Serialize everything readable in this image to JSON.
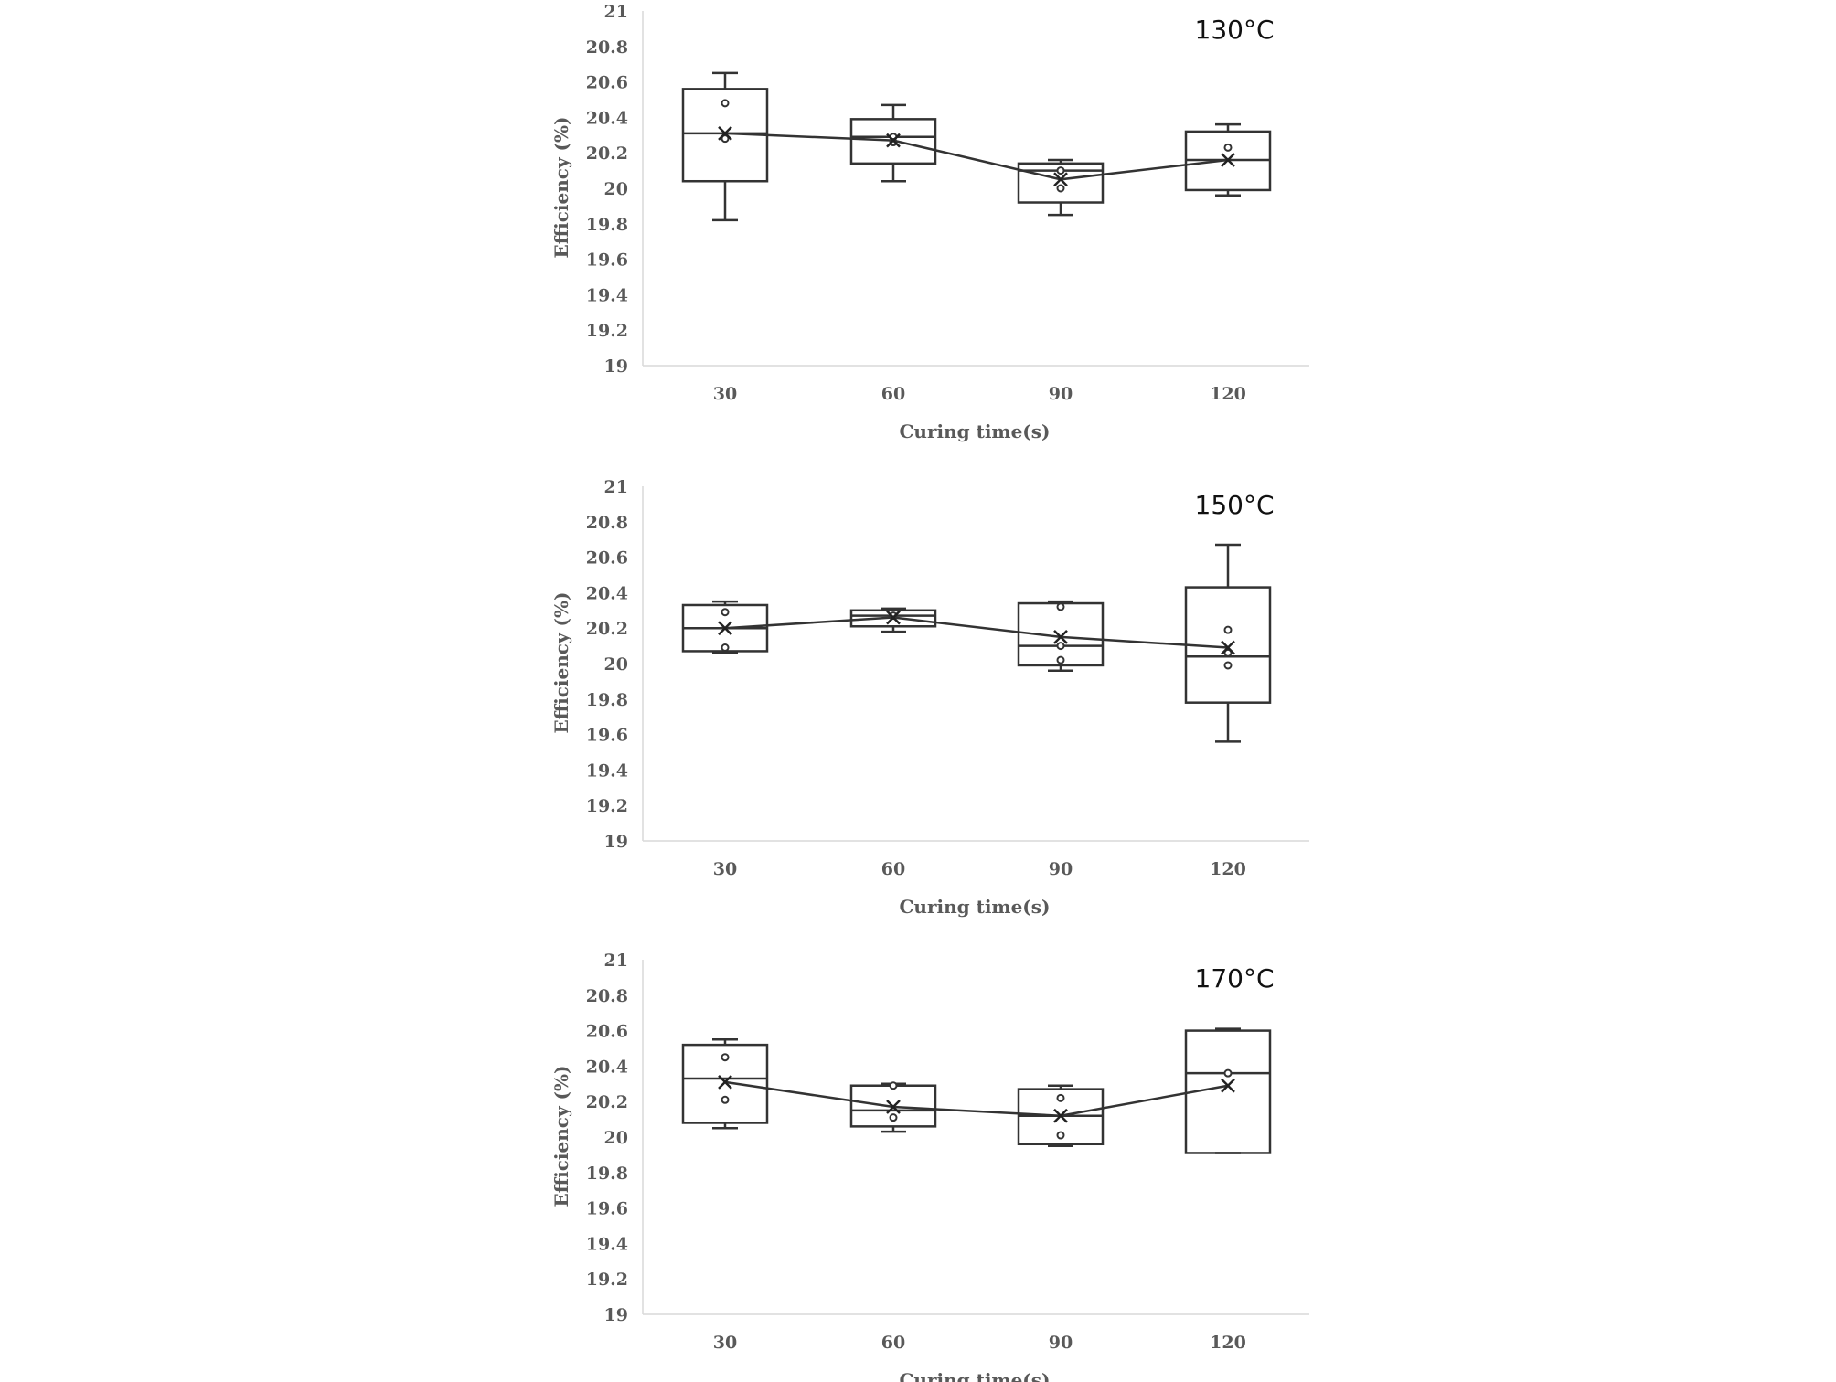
{
  "chart_data": [
    {
      "type": "box",
      "title": "130°C",
      "xlabel": "Curing time(s)",
      "ylabel": "Efficiency (%)",
      "ylim": [
        19,
        21
      ],
      "yticks": [
        "19",
        "19.2",
        "19.4",
        "19.6",
        "19.8",
        "20",
        "20.2",
        "20.4",
        "20.6",
        "20.8",
        "21"
      ],
      "categories": [
        "30",
        "60",
        "90",
        "120"
      ],
      "boxes": [
        {
          "min": 19.82,
          "q1": 20.04,
          "median": 20.31,
          "q3": 20.56,
          "max": 20.65,
          "mean": 20.31,
          "points": [
            20.48,
            20.28
          ]
        },
        {
          "min": 20.04,
          "q1": 20.14,
          "median": 20.29,
          "q3": 20.39,
          "max": 20.47,
          "mean": 20.27,
          "points": [
            20.29,
            20.26
          ]
        },
        {
          "min": 19.85,
          "q1": 19.92,
          "median": 20.1,
          "q3": 20.14,
          "max": 20.16,
          "mean": 20.05,
          "points": [
            20.1,
            20.0
          ]
        },
        {
          "min": 19.96,
          "q1": 19.99,
          "median": 20.16,
          "q3": 20.32,
          "max": 20.36,
          "mean": 20.16,
          "points": [
            20.23
          ]
        }
      ],
      "grid": false
    },
    {
      "type": "box",
      "title": "150°C",
      "xlabel": "Curing time(s)",
      "ylabel": "Efficiency (%)",
      "ylim": [
        19,
        21
      ],
      "yticks": [
        "19",
        "19.2",
        "19.4",
        "19.6",
        "19.8",
        "20",
        "20.2",
        "20.4",
        "20.6",
        "20.8",
        "21"
      ],
      "categories": [
        "30",
        "60",
        "90",
        "120"
      ],
      "boxes": [
        {
          "min": 20.06,
          "q1": 20.07,
          "median": 20.2,
          "q3": 20.33,
          "max": 20.35,
          "mean": 20.2,
          "points": [
            20.29,
            20.09
          ]
        },
        {
          "min": 20.18,
          "q1": 20.21,
          "median": 20.27,
          "q3": 20.3,
          "max": 20.31,
          "mean": 20.26,
          "points": [
            20.27
          ]
        },
        {
          "min": 19.96,
          "q1": 19.99,
          "median": 20.1,
          "q3": 20.34,
          "max": 20.35,
          "mean": 20.15,
          "points": [
            20.32,
            20.1,
            20.02
          ]
        },
        {
          "min": 19.56,
          "q1": 19.78,
          "median": 20.04,
          "q3": 20.43,
          "max": 20.67,
          "mean": 20.09,
          "points": [
            20.19,
            20.06,
            19.99
          ]
        }
      ],
      "grid": false
    },
    {
      "type": "box",
      "title": "170°C",
      "xlabel": "Curing time(s)",
      "ylabel": "Efficiency (%)",
      "ylim": [
        19,
        21
      ],
      "yticks": [
        "19",
        "19.2",
        "19.4",
        "19.6",
        "19.8",
        "20",
        "20.2",
        "20.4",
        "20.6",
        "20.8",
        "21"
      ],
      "categories": [
        "30",
        "60",
        "90",
        "120"
      ],
      "boxes": [
        {
          "min": 20.05,
          "q1": 20.08,
          "median": 20.33,
          "q3": 20.52,
          "max": 20.55,
          "mean": 20.31,
          "points": [
            20.45,
            20.21
          ]
        },
        {
          "min": 20.03,
          "q1": 20.06,
          "median": 20.15,
          "q3": 20.29,
          "max": 20.3,
          "mean": 20.17,
          "points": [
            20.29,
            20.11
          ]
        },
        {
          "min": 19.95,
          "q1": 19.96,
          "median": 20.12,
          "q3": 20.27,
          "max": 20.29,
          "mean": 20.12,
          "points": [
            20.22,
            20.01
          ]
        },
        {
          "min": 19.91,
          "q1": 19.91,
          "median": 20.36,
          "q3": 20.6,
          "max": 20.61,
          "mean": 20.29,
          "points": [
            20.36
          ]
        }
      ],
      "grid": false
    }
  ]
}
